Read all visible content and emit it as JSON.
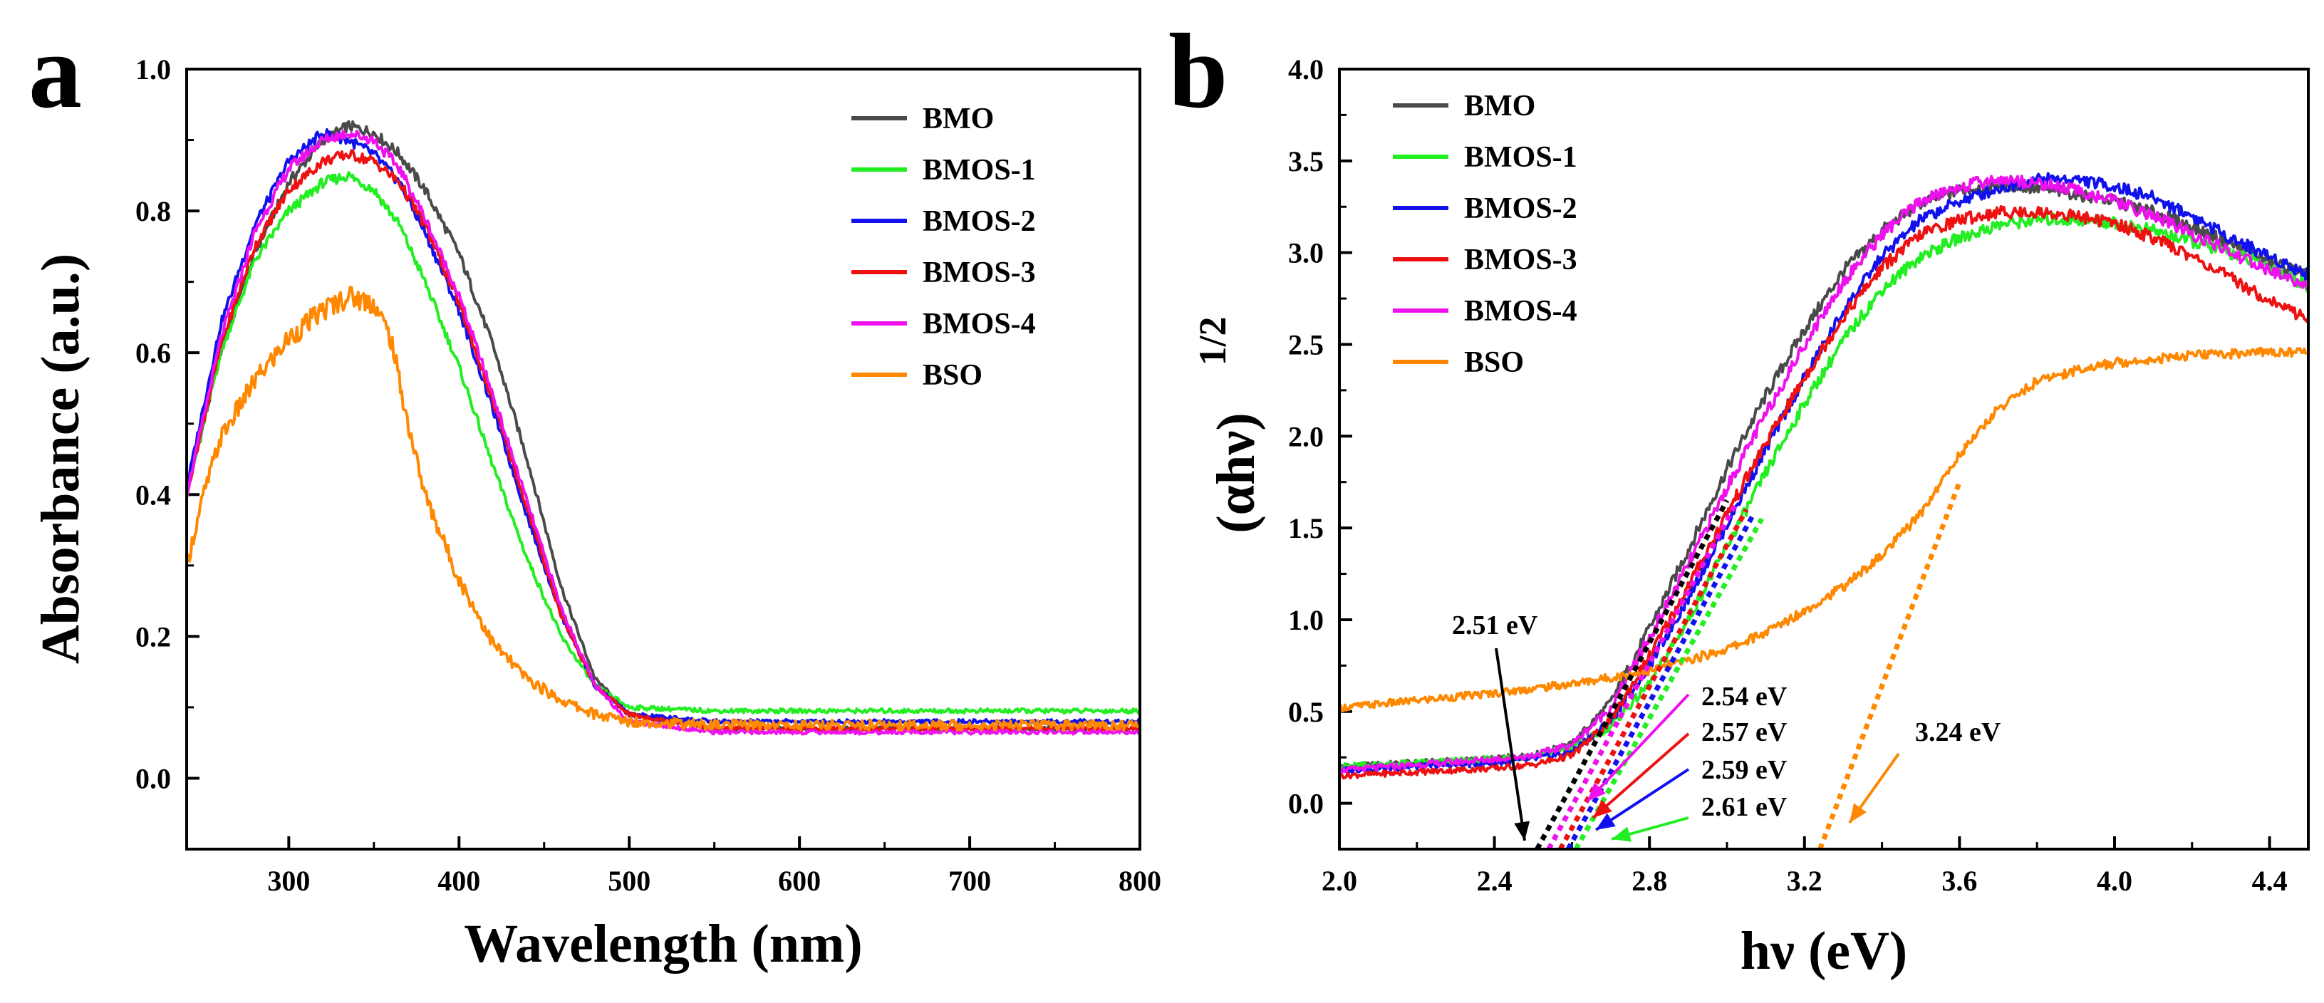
{
  "chart_data": [
    {
      "panel_label": "a",
      "type": "line",
      "xlabel": "Wavelength (nm)",
      "ylabel": "Absorbance (a.u.)",
      "xlim": [
        240,
        800
      ],
      "ylim": [
        -0.1,
        1.0
      ],
      "xticks": [
        300,
        400,
        500,
        600,
        700,
        800
      ],
      "yticks": [
        0.0,
        0.2,
        0.4,
        0.6,
        0.8,
        1.0
      ],
      "xtick_labels": [
        "300",
        "400",
        "500",
        "600",
        "700",
        "800"
      ],
      "ytick_labels": [
        "0.0",
        "0.2",
        "0.4",
        "0.6",
        "0.8",
        "1.0"
      ],
      "legend": "top-right",
      "series": [
        {
          "name": "BMO",
          "color": "#4a4a4a",
          "x": [
            240,
            260,
            280,
            300,
            320,
            335,
            350,
            365,
            380,
            400,
            420,
            440,
            460,
            480,
            500,
            550,
            600,
            650,
            700,
            750,
            800
          ],
          "y": [
            0.4,
            0.6,
            0.74,
            0.84,
            0.9,
            0.92,
            0.91,
            0.88,
            0.83,
            0.74,
            0.61,
            0.45,
            0.27,
            0.14,
            0.09,
            0.07,
            0.07,
            0.07,
            0.07,
            0.07,
            0.07
          ]
        },
        {
          "name": "BMOS-1",
          "color": "#22ee22",
          "x": [
            240,
            260,
            280,
            300,
            320,
            335,
            350,
            365,
            380,
            400,
            420,
            440,
            460,
            480,
            500,
            550,
            600,
            650,
            700,
            750,
            800
          ],
          "y": [
            0.4,
            0.6,
            0.73,
            0.8,
            0.84,
            0.85,
            0.83,
            0.78,
            0.7,
            0.58,
            0.44,
            0.31,
            0.2,
            0.13,
            0.1,
            0.095,
            0.095,
            0.095,
            0.095,
            0.095,
            0.095
          ]
        },
        {
          "name": "BMOS-2",
          "color": "#1111ee",
          "x": [
            240,
            260,
            280,
            300,
            320,
            335,
            350,
            365,
            380,
            400,
            420,
            440,
            460,
            480,
            500,
            550,
            600,
            650,
            700,
            750,
            800
          ],
          "y": [
            0.41,
            0.64,
            0.78,
            0.87,
            0.91,
            0.9,
            0.88,
            0.84,
            0.77,
            0.66,
            0.52,
            0.37,
            0.23,
            0.13,
            0.09,
            0.08,
            0.08,
            0.08,
            0.08,
            0.08,
            0.08
          ]
        },
        {
          "name": "BMOS-3",
          "color": "#ee1111",
          "x": [
            240,
            260,
            280,
            300,
            320,
            335,
            350,
            365,
            380,
            400,
            420,
            440,
            460,
            480,
            500,
            550,
            600,
            650,
            700,
            750,
            800
          ],
          "y": [
            0.4,
            0.61,
            0.75,
            0.83,
            0.87,
            0.88,
            0.87,
            0.84,
            0.78,
            0.67,
            0.53,
            0.38,
            0.23,
            0.13,
            0.09,
            0.07,
            0.07,
            0.07,
            0.07,
            0.07,
            0.07
          ]
        },
        {
          "name": "BMOS-4",
          "color": "#ee11ee",
          "x": [
            240,
            260,
            280,
            300,
            320,
            335,
            350,
            365,
            380,
            400,
            420,
            440,
            460,
            480,
            500,
            550,
            600,
            650,
            700,
            750,
            800
          ],
          "y": [
            0.4,
            0.62,
            0.77,
            0.86,
            0.9,
            0.91,
            0.9,
            0.86,
            0.79,
            0.68,
            0.54,
            0.39,
            0.24,
            0.13,
            0.08,
            0.065,
            0.065,
            0.065,
            0.065,
            0.065,
            0.065
          ]
        },
        {
          "name": "BSO",
          "color": "#ff8800",
          "x": [
            240,
            250,
            260,
            280,
            300,
            320,
            335,
            350,
            360,
            370,
            380,
            400,
            420,
            440,
            460,
            480,
            500,
            550,
            600,
            650,
            700,
            750,
            800
          ],
          "y": [
            0.3,
            0.4,
            0.48,
            0.56,
            0.62,
            0.66,
            0.68,
            0.67,
            0.62,
            0.5,
            0.4,
            0.28,
            0.19,
            0.14,
            0.11,
            0.09,
            0.08,
            0.075,
            0.075,
            0.075,
            0.075,
            0.075,
            0.075
          ]
        }
      ]
    },
    {
      "panel_label": "b",
      "type": "line",
      "xlabel": "hν (eV)",
      "ylabel_main": "(αhν)",
      "ylabel_sup": "1/2",
      "xlim": [
        2.0,
        4.5
      ],
      "ylim": [
        -0.25,
        4.0
      ],
      "xticks": [
        2.0,
        2.4,
        2.8,
        3.2,
        3.6,
        4.0,
        4.4
      ],
      "yticks": [
        0.0,
        0.5,
        1.0,
        1.5,
        2.0,
        2.5,
        3.0,
        3.5,
        4.0
      ],
      "xtick_labels": [
        "2.0",
        "2.4",
        "2.8",
        "3.2",
        "3.6",
        "4.0",
        "4.4"
      ],
      "ytick_labels": [
        "0.0",
        "0.5",
        "1.0",
        "1.5",
        "2.0",
        "2.5",
        "3.0",
        "3.5",
        "4.0"
      ],
      "legend": "top-left",
      "series": [
        {
          "name": "BMO",
          "color": "#4a4a4a",
          "x": [
            2.0,
            2.2,
            2.4,
            2.5,
            2.6,
            2.7,
            2.8,
            2.9,
            3.0,
            3.1,
            3.2,
            3.3,
            3.4,
            3.5,
            3.6,
            3.7,
            3.8,
            3.9,
            4.0,
            4.1,
            4.2,
            4.3,
            4.4,
            4.5
          ],
          "y": [
            0.2,
            0.22,
            0.24,
            0.26,
            0.32,
            0.55,
            0.95,
            1.38,
            1.82,
            2.22,
            2.58,
            2.9,
            3.12,
            3.27,
            3.34,
            3.37,
            3.35,
            3.32,
            3.28,
            3.22,
            3.14,
            3.05,
            2.95,
            2.88
          ]
        },
        {
          "name": "BMOS-1",
          "color": "#22ee22",
          "x": [
            2.0,
            2.2,
            2.4,
            2.5,
            2.6,
            2.7,
            2.8,
            2.9,
            3.0,
            3.1,
            3.2,
            3.3,
            3.4,
            3.5,
            3.6,
            3.7,
            3.8,
            3.9,
            4.0,
            4.1,
            4.2,
            4.3,
            4.4,
            4.5
          ],
          "y": [
            0.2,
            0.22,
            0.24,
            0.26,
            0.3,
            0.42,
            0.65,
            1.0,
            1.4,
            1.8,
            2.18,
            2.52,
            2.8,
            2.98,
            3.08,
            3.15,
            3.18,
            3.18,
            3.16,
            3.12,
            3.06,
            3.0,
            2.92,
            2.82
          ]
        },
        {
          "name": "BMOS-2",
          "color": "#1111ee",
          "x": [
            2.0,
            2.2,
            2.4,
            2.5,
            2.6,
            2.7,
            2.8,
            2.9,
            3.0,
            3.1,
            3.2,
            3.3,
            3.4,
            3.5,
            3.6,
            3.7,
            3.8,
            3.9,
            4.0,
            4.1,
            4.2,
            4.3,
            4.4,
            4.5
          ],
          "y": [
            0.18,
            0.2,
            0.22,
            0.24,
            0.28,
            0.45,
            0.75,
            1.12,
            1.52,
            1.93,
            2.32,
            2.68,
            2.98,
            3.18,
            3.28,
            3.35,
            3.4,
            3.4,
            3.36,
            3.3,
            3.2,
            3.08,
            2.98,
            2.88
          ]
        },
        {
          "name": "BMOS-3",
          "color": "#ee1111",
          "x": [
            2.0,
            2.2,
            2.4,
            2.5,
            2.6,
            2.7,
            2.8,
            2.9,
            3.0,
            3.1,
            3.2,
            3.3,
            3.4,
            3.5,
            3.6,
            3.7,
            3.8,
            3.9,
            4.0,
            4.1,
            4.2,
            4.3,
            4.4,
            4.5
          ],
          "y": [
            0.15,
            0.17,
            0.19,
            0.21,
            0.26,
            0.45,
            0.8,
            1.18,
            1.58,
            1.96,
            2.32,
            2.65,
            2.92,
            3.1,
            3.18,
            3.22,
            3.22,
            3.2,
            3.16,
            3.08,
            2.98,
            2.86,
            2.74,
            2.64
          ]
        },
        {
          "name": "BMOS-4",
          "color": "#ee11ee",
          "x": [
            2.0,
            2.2,
            2.4,
            2.5,
            2.6,
            2.7,
            2.8,
            2.9,
            3.0,
            3.1,
            3.2,
            3.3,
            3.4,
            3.5,
            3.6,
            3.7,
            3.8,
            3.9,
            4.0,
            4.1,
            4.2,
            4.3,
            4.4,
            4.5
          ],
          "y": [
            0.18,
            0.21,
            0.24,
            0.26,
            0.32,
            0.52,
            0.9,
            1.3,
            1.72,
            2.12,
            2.5,
            2.84,
            3.1,
            3.28,
            3.36,
            3.4,
            3.38,
            3.34,
            3.28,
            3.2,
            3.1,
            3.0,
            2.9,
            2.82
          ]
        },
        {
          "name": "BSO",
          "color": "#ff8800",
          "x": [
            2.0,
            2.2,
            2.4,
            2.6,
            2.8,
            3.0,
            3.1,
            3.2,
            3.3,
            3.4,
            3.5,
            3.6,
            3.7,
            3.8,
            3.9,
            4.0,
            4.1,
            4.2,
            4.3,
            4.4,
            4.5
          ],
          "y": [
            0.52,
            0.56,
            0.6,
            0.65,
            0.72,
            0.84,
            0.93,
            1.05,
            1.18,
            1.35,
            1.58,
            1.9,
            2.15,
            2.3,
            2.36,
            2.4,
            2.42,
            2.44,
            2.45,
            2.46,
            2.46
          ]
        }
      ],
      "tangent_lines": [
        {
          "color": "#000000",
          "x0": 2.51,
          "x1": 3.0
        },
        {
          "color": "#ee11ee",
          "x0": 2.54,
          "x1": 3.02
        },
        {
          "color": "#ee1111",
          "x0": 2.57,
          "x1": 3.05
        },
        {
          "color": "#1111ee",
          "x0": 2.59,
          "x1": 3.07
        },
        {
          "color": "#22ee22",
          "x0": 2.61,
          "x1": 3.09
        },
        {
          "color": "#ff8800",
          "x0": 3.24,
          "x1": 3.6
        }
      ],
      "annotations": [
        {
          "text": "2.51 eV",
          "color": "#000000"
        },
        {
          "text": "2.54 eV",
          "color": "#ee11ee"
        },
        {
          "text": "2.57 eV",
          "color": "#ee1111"
        },
        {
          "text": "2.59 eV",
          "color": "#1111ee"
        },
        {
          "text": "2.61 eV",
          "color": "#22ee22"
        },
        {
          "text": "3.24 eV",
          "color": "#ff8800"
        }
      ]
    }
  ]
}
